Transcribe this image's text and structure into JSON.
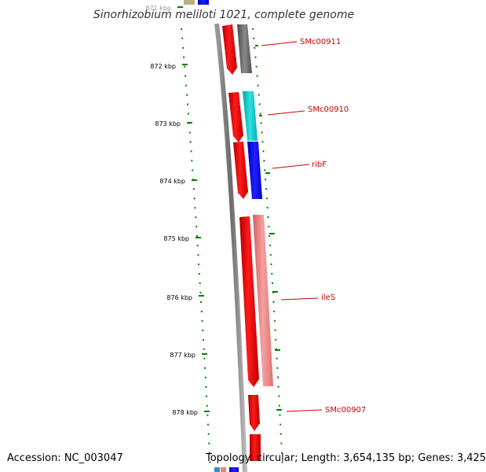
{
  "title": "Sinorhizobium meliloti 1021, complete genome",
  "ticks": [
    {
      "label": "871 kbp"
    },
    {
      "label": "872 kbp"
    },
    {
      "label": "873 kbp"
    },
    {
      "label": "874 kbp"
    },
    {
      "label": "875 kbp"
    },
    {
      "label": "876 kbp"
    },
    {
      "label": "877 kbp"
    },
    {
      "label": "878 kbp"
    }
  ],
  "genes": [
    {
      "label": "SMc00911"
    },
    {
      "label": "SMc00910"
    },
    {
      "label": "ribF"
    },
    {
      "label": "ileS"
    },
    {
      "label": "SMc00907"
    }
  ],
  "colors": {
    "forward_strand": "#ff0000",
    "tick": "#008000",
    "gene_label": "#cc0000",
    "backbone": "#808080",
    "cds_gray": "#666666",
    "cds_cyan": "#00c8c8",
    "cds_blue": "#0000ff",
    "cds_pink": "#f08080"
  },
  "footer": {
    "accession": "Accession: NC_003047",
    "summary": "Topology: circular; Length: 3,654,135 bp; Genes: 3,425"
  }
}
